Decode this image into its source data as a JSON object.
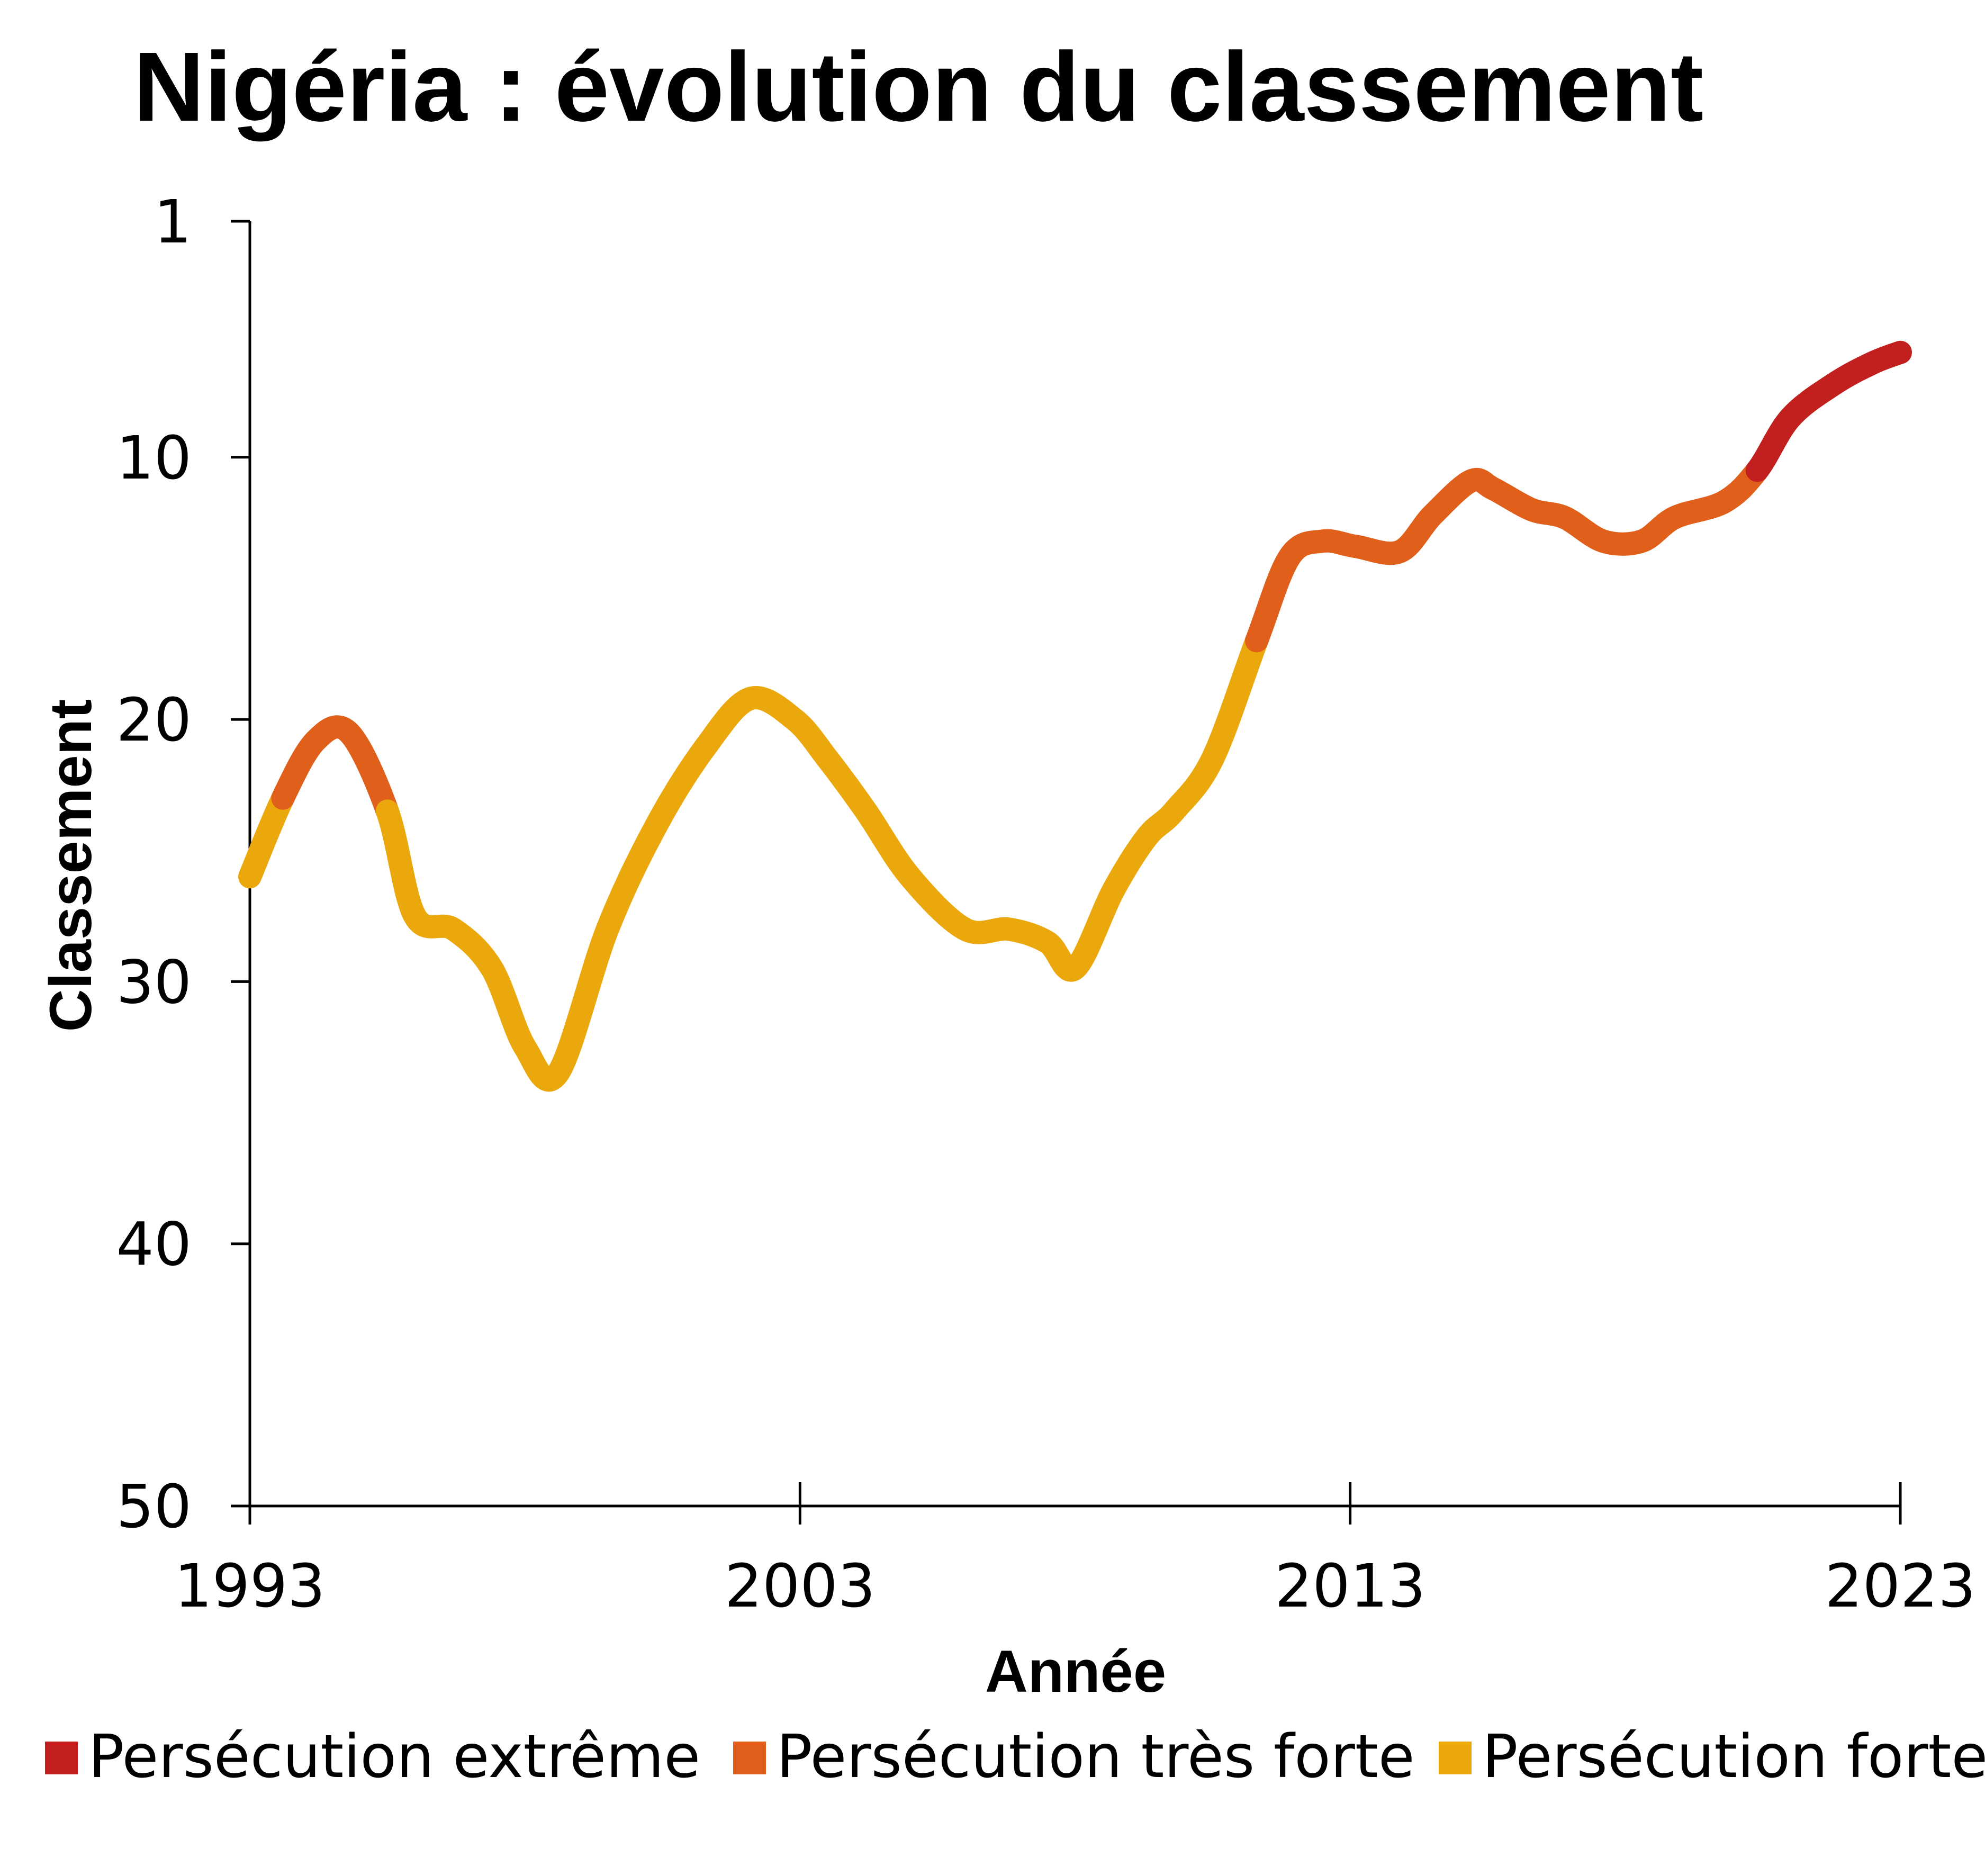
{
  "chart_data": {
    "type": "line",
    "title": "Nigéria : évolution du classement",
    "xlabel": "Année",
    "ylabel": "Classement",
    "x_ticks": [
      "1993",
      "2003",
      "2013",
      "2023"
    ],
    "y_ticks": [
      "1",
      "10",
      "20",
      "30",
      "40",
      "50"
    ],
    "xlim": [
      1993,
      2023
    ],
    "ylim": [
      1,
      50
    ],
    "y_inverted": true,
    "grid": false,
    "legend_position": "bottom",
    "legend": [
      {
        "label": "Persécution extrême",
        "color": "#c21f1f"
      },
      {
        "label": "Persécution très forte",
        "color": "#e0601b"
      },
      {
        "label": "Persécution forte",
        "color": "#eaa80c"
      }
    ],
    "x": [
      1993,
      1993.6,
      1994.2,
      1994.8,
      1995.5,
      1996,
      1996.7,
      1997.4,
      1998,
      1998.6,
      1999.5,
      2000.4,
      2001.3,
      2002.1,
      2002.9,
      2003.5,
      2004.2,
      2005,
      2006,
      2006.8,
      2007.5,
      2008,
      2008.7,
      2009.3,
      2009.8,
      2010.5,
      2011.3,
      2011.9,
      2012.5,
      2013.1,
      2013.9,
      2014.5,
      2015.2,
      2015.6,
      2016.3,
      2016.9,
      2017.6,
      2018.3,
      2018.9,
      2019.8,
      2020.4,
      2021,
      2021.8,
      2022.5,
      2023
    ],
    "values": [
      26,
      23,
      20.8,
      20.5,
      23.5,
      27.5,
      28,
      29.5,
      32.5,
      33.5,
      28,
      24,
      21,
      19.2,
      20,
      21.5,
      23.5,
      26,
      28,
      28,
      28.5,
      29.5,
      26.5,
      24.5,
      23.5,
      21.5,
      17,
      13.8,
      13.2,
      13.4,
      13.6,
      12.2,
      10.9,
      11.2,
      12,
      12.3,
      13.2,
      13.2,
      12.3,
      11.7,
      10.5,
      8.5,
      7.2,
      6.4,
      6
    ],
    "categories_per_point": [
      "forte",
      "très forte",
      "très forte",
      "très forte",
      "forte",
      "forte",
      "forte",
      "forte",
      "forte",
      "forte",
      "forte",
      "forte",
      "forte",
      "forte",
      "forte",
      "forte",
      "forte",
      "forte",
      "forte",
      "forte",
      "forte",
      "forte",
      "forte",
      "forte",
      "forte",
      "forte",
      "très forte",
      "très forte",
      "très forte",
      "très forte",
      "très forte",
      "très forte",
      "très forte",
      "très forte",
      "très forte",
      "très forte",
      "très forte",
      "très forte",
      "très forte",
      "très forte",
      "extrême",
      "extrême",
      "extrême",
      "extrême",
      "extrême"
    ],
    "color_by_category": {
      "forte": "#eaa80c",
      "très forte": "#e0601b",
      "extrême": "#c21f1f"
    }
  }
}
